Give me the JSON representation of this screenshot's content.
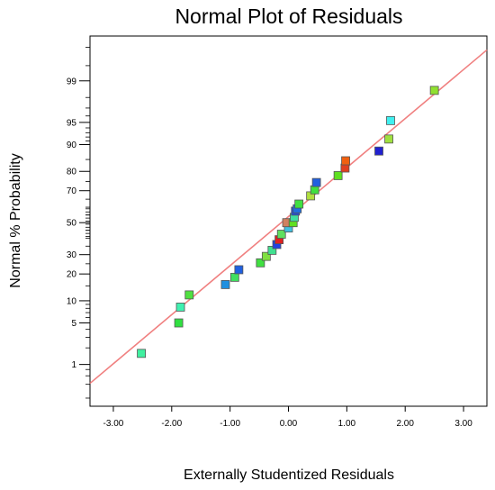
{
  "chart_data": {
    "type": "scatter",
    "title": "Normal Plot of Residuals",
    "xlabel": "Externally Studentized Residuals",
    "ylabel": "Normal % Probability",
    "xlim": [
      -3.4,
      3.4
    ],
    "x_ticks": [
      -3.0,
      -2.0,
      -1.0,
      0.0,
      1.0,
      2.0,
      3.0
    ],
    "x_tick_labels": [
      "-3.00",
      "-2.00",
      "-1.00",
      "0.00",
      "1.00",
      "2.00",
      "3.00"
    ],
    "y_scale": "normal-probability",
    "y_ticks": [
      1,
      5,
      10,
      20,
      30,
      50,
      70,
      80,
      90,
      95,
      99
    ],
    "y_tick_labels": [
      "1",
      "5",
      "10",
      "20",
      "30",
      "50",
      "70",
      "80",
      "90",
      "95",
      "99"
    ],
    "grid": false,
    "reference_line": {
      "color": "#f08080",
      "x": [
        -3.4,
        3.4
      ],
      "y": [
        0.42,
        99.77
      ]
    },
    "points": [
      {
        "x": -2.52,
        "y": 1.6,
        "color": "#40f0a0"
      },
      {
        "x": -1.88,
        "y": 5.0,
        "color": "#30e040"
      },
      {
        "x": -1.85,
        "y": 8.3,
        "color": "#40f0b0"
      },
      {
        "x": -1.7,
        "y": 11.8,
        "color": "#50e040"
      },
      {
        "x": -1.08,
        "y": 15.5,
        "color": "#2090e0"
      },
      {
        "x": -0.92,
        "y": 18.5,
        "color": "#40e060"
      },
      {
        "x": -0.85,
        "y": 22.0,
        "color": "#2060e0"
      },
      {
        "x": -0.48,
        "y": 25.5,
        "color": "#40e040"
      },
      {
        "x": -0.38,
        "y": 29.0,
        "color": "#80e040"
      },
      {
        "x": -0.28,
        "y": 32.5,
        "color": "#40e090"
      },
      {
        "x": -0.2,
        "y": 36.0,
        "color": "#2040e0"
      },
      {
        "x": -0.16,
        "y": 39.0,
        "color": "#e02020"
      },
      {
        "x": -0.12,
        "y": 42.5,
        "color": "#60e060"
      },
      {
        "x": 0.0,
        "y": 46.5,
        "color": "#40c0e0"
      },
      {
        "x": -0.03,
        "y": 50.0,
        "color": "#d08060"
      },
      {
        "x": 0.08,
        "y": 50.0,
        "color": "#60e020"
      },
      {
        "x": 0.1,
        "y": 53.5,
        "color": "#40e0a0"
      },
      {
        "x": 0.12,
        "y": 57.5,
        "color": "#2050e0"
      },
      {
        "x": 0.15,
        "y": 59.0,
        "color": "#2070e0"
      },
      {
        "x": 0.18,
        "y": 62.0,
        "color": "#40e040"
      },
      {
        "x": 0.38,
        "y": 67.0,
        "color": "#b0e040"
      },
      {
        "x": 0.45,
        "y": 70.5,
        "color": "#40e040"
      },
      {
        "x": 0.48,
        "y": 74.5,
        "color": "#2060e0"
      },
      {
        "x": 0.85,
        "y": 78.0,
        "color": "#60e020"
      },
      {
        "x": 0.97,
        "y": 81.5,
        "color": "#e04020"
      },
      {
        "x": 0.98,
        "y": 84.5,
        "color": "#f06010"
      },
      {
        "x": 1.55,
        "y": 88.0,
        "color": "#2020d0"
      },
      {
        "x": 1.72,
        "y": 91.5,
        "color": "#a0e040"
      },
      {
        "x": 1.75,
        "y": 95.3,
        "color": "#40f0f0"
      },
      {
        "x": 2.5,
        "y": 98.5,
        "color": "#90e030"
      }
    ]
  }
}
